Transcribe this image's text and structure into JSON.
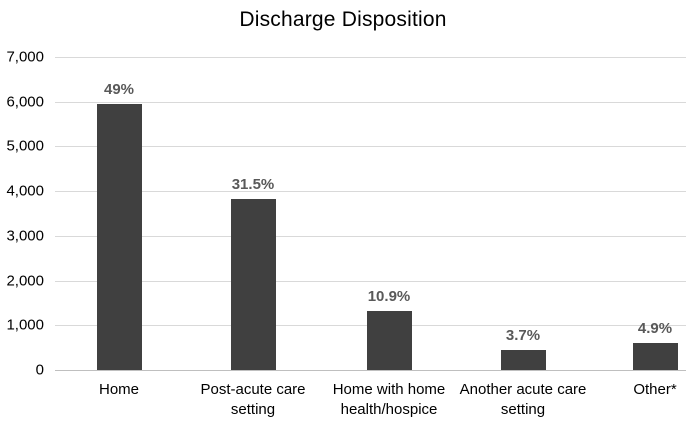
{
  "title": "Discharge Disposition",
  "colors": {
    "bar": "#404040",
    "data_label": "#595959",
    "gridline": "#d9d9d9",
    "zero_line": "#bfbfbf",
    "text": "#000000",
    "background": "#ffffff"
  },
  "y_axis": {
    "tick_labels": [
      "7,000",
      "6,000",
      "5,000",
      "4,000",
      "3,000",
      "2,000",
      "1,000",
      "0"
    ],
    "tick_values": [
      7000,
      6000,
      5000,
      4000,
      3000,
      2000,
      1000,
      0
    ]
  },
  "chart_data": {
    "type": "bar",
    "title": "Discharge Disposition",
    "categories": [
      "Home",
      "Post-acute care setting",
      "Home with home health/hospice",
      "Another acute care setting",
      "Other*"
    ],
    "category_label_lines": [
      [
        "Home"
      ],
      [
        "Post-acute care",
        "setting"
      ],
      [
        "Home with home",
        "health/hospice"
      ],
      [
        "Another acute care",
        "setting"
      ],
      [
        "Other*"
      ]
    ],
    "values": [
      5950,
      3830,
      1320,
      450,
      595
    ],
    "data_labels": [
      "49%",
      "31.5%",
      "10.9%",
      "3.7%",
      "4.9%"
    ],
    "xlabel": "",
    "ylabel": "",
    "ylim": [
      0,
      7000
    ],
    "grid": "horizontal",
    "legend": "none"
  }
}
